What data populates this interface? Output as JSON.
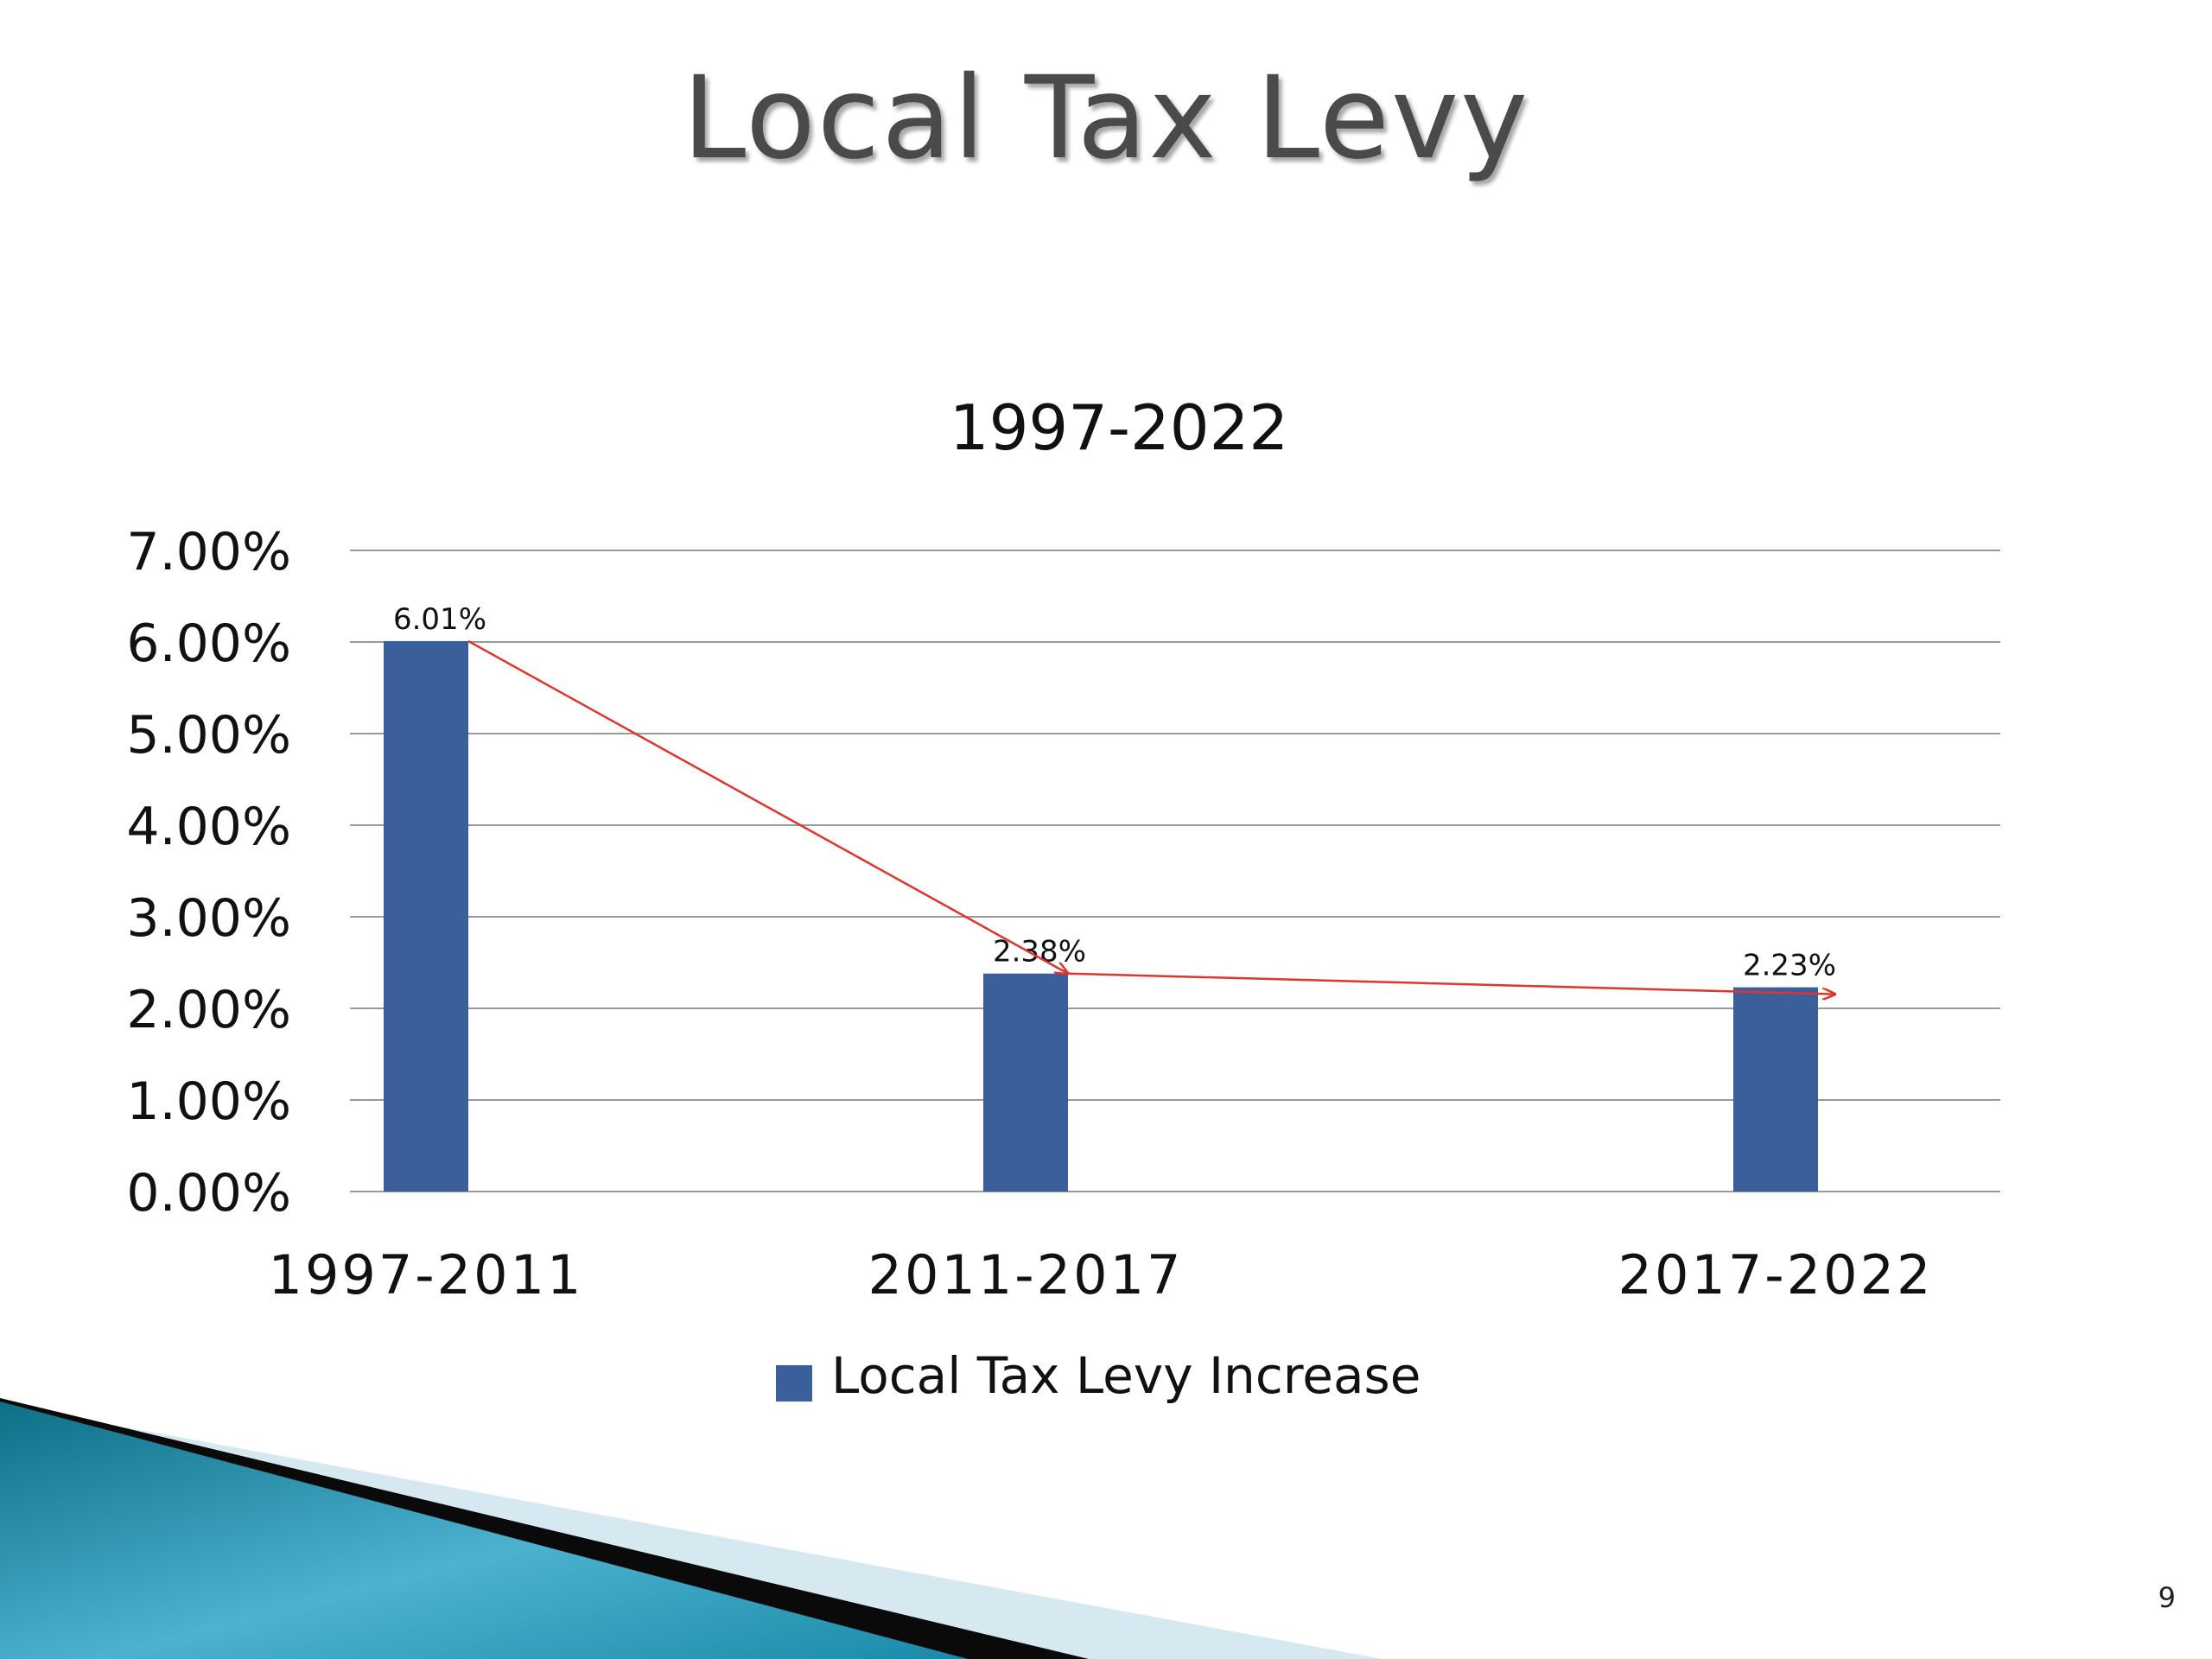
{
  "slide": {
    "title": "Local Tax Levy",
    "number": "9"
  },
  "colors": {
    "bar": "#3a5f9a",
    "grid": "#9a9a9a",
    "trend_arrow": "#e0342c",
    "title_text": "#4a4a4a"
  },
  "chart_data": {
    "type": "bar",
    "title": "1997-2022",
    "categories": [
      "1997-2011",
      "2011-2017",
      "2017-2022"
    ],
    "series": [
      {
        "name": "Local Tax Levy Increase",
        "values": [
          6.01,
          2.38,
          2.23
        ],
        "data_labels": [
          "6.01%",
          "2.38%",
          "2.23%"
        ]
      }
    ],
    "ylim": [
      0,
      7
    ],
    "yticks": [
      0,
      1,
      2,
      3,
      4,
      5,
      6,
      7
    ],
    "ytick_labels": [
      "0.00%",
      "1.00%",
      "2.00%",
      "3.00%",
      "4.00%",
      "5.00%",
      "6.00%",
      "7.00%"
    ],
    "grid": true,
    "legend_position": "bottom",
    "annotation": "trend arrow connecting bar tops"
  }
}
